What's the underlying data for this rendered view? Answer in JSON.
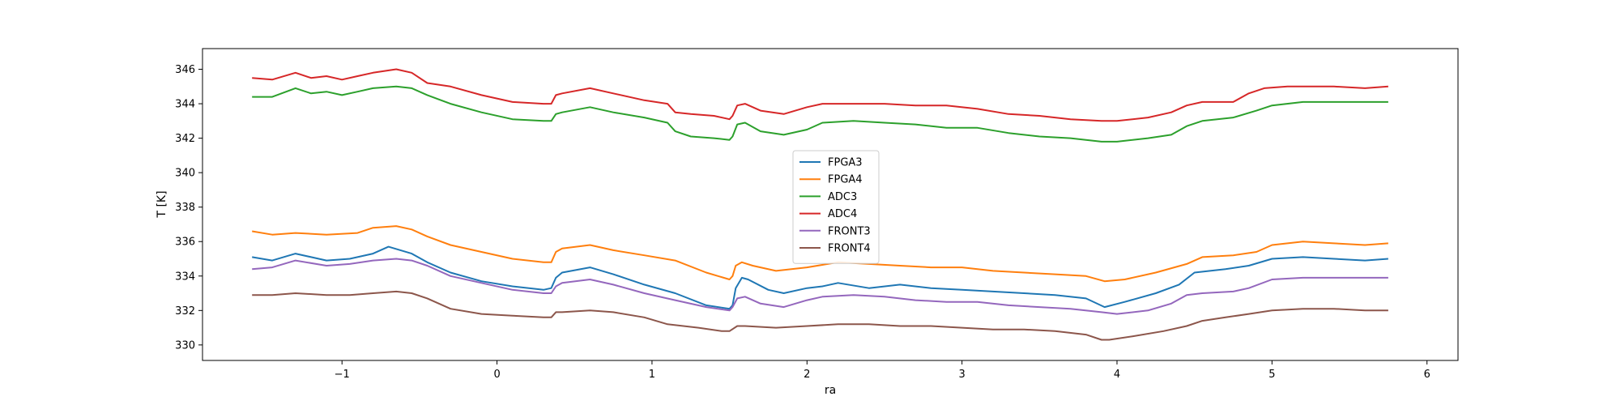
{
  "chart_data": {
    "type": "line",
    "xlabel": "ra",
    "ylabel": "T [K]",
    "xlim": [
      -1.9,
      6.2
    ],
    "ylim": [
      329.1,
      347.2
    ],
    "x_ticks": [
      -1,
      0,
      1,
      2,
      3,
      4,
      5,
      6
    ],
    "y_ticks": [
      330,
      332,
      334,
      336,
      338,
      340,
      342,
      344,
      346
    ],
    "x_tick_labels": [
      "−1",
      "0",
      "1",
      "2",
      "3",
      "4",
      "5",
      "6"
    ],
    "y_tick_labels": [
      "330",
      "332",
      "334",
      "336",
      "338",
      "340",
      "342",
      "344",
      "346"
    ],
    "grid": false,
    "legend_position": "center",
    "series": [
      {
        "name": "FPGA3",
        "color": "#1f77b4",
        "points": [
          [
            -1.58,
            335.1
          ],
          [
            -1.45,
            334.9
          ],
          [
            -1.3,
            335.3
          ],
          [
            -1.1,
            334.9
          ],
          [
            -0.95,
            335.0
          ],
          [
            -0.8,
            335.3
          ],
          [
            -0.7,
            335.7
          ],
          [
            -0.55,
            335.3
          ],
          [
            -0.45,
            334.8
          ],
          [
            -0.3,
            334.2
          ],
          [
            -0.1,
            333.7
          ],
          [
            0.1,
            333.4
          ],
          [
            0.3,
            333.2
          ],
          [
            0.35,
            333.3
          ],
          [
            0.38,
            333.9
          ],
          [
            0.42,
            334.2
          ],
          [
            0.6,
            334.5
          ],
          [
            0.75,
            334.1
          ],
          [
            0.95,
            333.5
          ],
          [
            1.15,
            333.0
          ],
          [
            1.35,
            332.3
          ],
          [
            1.5,
            332.1
          ],
          [
            1.52,
            332.3
          ],
          [
            1.54,
            333.3
          ],
          [
            1.58,
            333.9
          ],
          [
            1.62,
            333.8
          ],
          [
            1.75,
            333.2
          ],
          [
            1.85,
            333.0
          ],
          [
            2.0,
            333.3
          ],
          [
            2.1,
            333.4
          ],
          [
            2.2,
            333.6
          ],
          [
            2.4,
            333.3
          ],
          [
            2.6,
            333.5
          ],
          [
            2.8,
            333.3
          ],
          [
            3.0,
            333.2
          ],
          [
            3.2,
            333.1
          ],
          [
            3.4,
            333.0
          ],
          [
            3.6,
            332.9
          ],
          [
            3.8,
            332.7
          ],
          [
            3.92,
            332.2
          ],
          [
            4.05,
            332.5
          ],
          [
            4.25,
            333.0
          ],
          [
            4.4,
            333.5
          ],
          [
            4.5,
            334.2
          ],
          [
            4.7,
            334.4
          ],
          [
            4.85,
            334.6
          ],
          [
            5.0,
            335.0
          ],
          [
            5.2,
            335.1
          ],
          [
            5.4,
            335.0
          ],
          [
            5.6,
            334.9
          ],
          [
            5.75,
            335.0
          ]
        ]
      },
      {
        "name": "FPGA4",
        "color": "#ff7f0e",
        "points": [
          [
            -1.58,
            336.6
          ],
          [
            -1.45,
            336.4
          ],
          [
            -1.3,
            336.5
          ],
          [
            -1.1,
            336.4
          ],
          [
            -0.9,
            336.5
          ],
          [
            -0.8,
            336.8
          ],
          [
            -0.65,
            336.9
          ],
          [
            -0.55,
            336.7
          ],
          [
            -0.45,
            336.3
          ],
          [
            -0.3,
            335.8
          ],
          [
            -0.1,
            335.4
          ],
          [
            0.1,
            335.0
          ],
          [
            0.3,
            334.8
          ],
          [
            0.35,
            334.8
          ],
          [
            0.38,
            335.4
          ],
          [
            0.42,
            335.6
          ],
          [
            0.6,
            335.8
          ],
          [
            0.75,
            335.5
          ],
          [
            0.95,
            335.2
          ],
          [
            1.15,
            334.9
          ],
          [
            1.35,
            334.2
          ],
          [
            1.5,
            333.8
          ],
          [
            1.52,
            334.0
          ],
          [
            1.54,
            334.6
          ],
          [
            1.58,
            334.8
          ],
          [
            1.65,
            334.6
          ],
          [
            1.8,
            334.3
          ],
          [
            2.0,
            334.5
          ],
          [
            2.2,
            334.8
          ],
          [
            2.4,
            334.7
          ],
          [
            2.6,
            334.6
          ],
          [
            2.8,
            334.5
          ],
          [
            3.0,
            334.5
          ],
          [
            3.2,
            334.3
          ],
          [
            3.4,
            334.2
          ],
          [
            3.6,
            334.1
          ],
          [
            3.8,
            334.0
          ],
          [
            3.92,
            333.7
          ],
          [
            4.05,
            333.8
          ],
          [
            4.25,
            334.2
          ],
          [
            4.45,
            334.7
          ],
          [
            4.55,
            335.1
          ],
          [
            4.75,
            335.2
          ],
          [
            4.9,
            335.4
          ],
          [
            5.0,
            335.8
          ],
          [
            5.2,
            336.0
          ],
          [
            5.4,
            335.9
          ],
          [
            5.6,
            335.8
          ],
          [
            5.75,
            335.9
          ]
        ]
      },
      {
        "name": "ADC3",
        "color": "#2ca02c",
        "points": [
          [
            -1.58,
            344.4
          ],
          [
            -1.45,
            344.4
          ],
          [
            -1.3,
            344.9
          ],
          [
            -1.2,
            344.6
          ],
          [
            -1.1,
            344.7
          ],
          [
            -1.0,
            344.5
          ],
          [
            -0.9,
            344.7
          ],
          [
            -0.8,
            344.9
          ],
          [
            -0.65,
            345.0
          ],
          [
            -0.55,
            344.9
          ],
          [
            -0.45,
            344.5
          ],
          [
            -0.3,
            344.0
          ],
          [
            -0.1,
            343.5
          ],
          [
            0.1,
            343.1
          ],
          [
            0.3,
            343.0
          ],
          [
            0.35,
            343.0
          ],
          [
            0.38,
            343.4
          ],
          [
            0.42,
            343.5
          ],
          [
            0.6,
            343.8
          ],
          [
            0.75,
            343.5
          ],
          [
            0.95,
            343.2
          ],
          [
            1.1,
            342.9
          ],
          [
            1.15,
            342.4
          ],
          [
            1.25,
            342.1
          ],
          [
            1.4,
            342.0
          ],
          [
            1.5,
            341.9
          ],
          [
            1.52,
            342.1
          ],
          [
            1.55,
            342.8
          ],
          [
            1.6,
            342.9
          ],
          [
            1.7,
            342.4
          ],
          [
            1.85,
            342.2
          ],
          [
            2.0,
            342.5
          ],
          [
            2.1,
            342.9
          ],
          [
            2.3,
            343.0
          ],
          [
            2.5,
            342.9
          ],
          [
            2.7,
            342.8
          ],
          [
            2.9,
            342.6
          ],
          [
            3.1,
            342.6
          ],
          [
            3.3,
            342.3
          ],
          [
            3.5,
            342.1
          ],
          [
            3.7,
            342.0
          ],
          [
            3.9,
            341.8
          ],
          [
            4.0,
            341.8
          ],
          [
            4.2,
            342.0
          ],
          [
            4.35,
            342.2
          ],
          [
            4.45,
            342.7
          ],
          [
            4.55,
            343.0
          ],
          [
            4.75,
            343.2
          ],
          [
            4.9,
            343.6
          ],
          [
            5.0,
            343.9
          ],
          [
            5.2,
            344.1
          ],
          [
            5.4,
            344.1
          ],
          [
            5.6,
            344.1
          ],
          [
            5.75,
            344.1
          ]
        ]
      },
      {
        "name": "ADC4",
        "color": "#d62728",
        "points": [
          [
            -1.58,
            345.5
          ],
          [
            -1.45,
            345.4
          ],
          [
            -1.3,
            345.8
          ],
          [
            -1.2,
            345.5
          ],
          [
            -1.1,
            345.6
          ],
          [
            -1.0,
            345.4
          ],
          [
            -0.9,
            345.6
          ],
          [
            -0.8,
            345.8
          ],
          [
            -0.65,
            346.0
          ],
          [
            -0.55,
            345.8
          ],
          [
            -0.45,
            345.2
          ],
          [
            -0.3,
            345.0
          ],
          [
            -0.1,
            344.5
          ],
          [
            0.1,
            344.1
          ],
          [
            0.3,
            344.0
          ],
          [
            0.35,
            344.0
          ],
          [
            0.38,
            344.5
          ],
          [
            0.42,
            344.6
          ],
          [
            0.6,
            344.9
          ],
          [
            0.75,
            344.6
          ],
          [
            0.95,
            344.2
          ],
          [
            1.1,
            344.0
          ],
          [
            1.15,
            343.5
          ],
          [
            1.25,
            343.4
          ],
          [
            1.4,
            343.3
          ],
          [
            1.5,
            343.1
          ],
          [
            1.52,
            343.3
          ],
          [
            1.55,
            343.9
          ],
          [
            1.6,
            344.0
          ],
          [
            1.7,
            343.6
          ],
          [
            1.85,
            343.4
          ],
          [
            2.0,
            343.8
          ],
          [
            2.1,
            344.0
          ],
          [
            2.3,
            344.0
          ],
          [
            2.5,
            344.0
          ],
          [
            2.7,
            343.9
          ],
          [
            2.9,
            343.9
          ],
          [
            3.1,
            343.7
          ],
          [
            3.3,
            343.4
          ],
          [
            3.5,
            343.3
          ],
          [
            3.7,
            343.1
          ],
          [
            3.9,
            343.0
          ],
          [
            4.0,
            343.0
          ],
          [
            4.2,
            343.2
          ],
          [
            4.35,
            343.5
          ],
          [
            4.45,
            343.9
          ],
          [
            4.55,
            344.1
          ],
          [
            4.75,
            344.1
          ],
          [
            4.85,
            344.6
          ],
          [
            4.95,
            344.9
          ],
          [
            5.1,
            345.0
          ],
          [
            5.4,
            345.0
          ],
          [
            5.6,
            344.9
          ],
          [
            5.75,
            345.0
          ]
        ]
      },
      {
        "name": "FRONT3",
        "color": "#9467bd",
        "points": [
          [
            -1.58,
            334.4
          ],
          [
            -1.45,
            334.5
          ],
          [
            -1.3,
            334.9
          ],
          [
            -1.1,
            334.6
          ],
          [
            -0.95,
            334.7
          ],
          [
            -0.8,
            334.9
          ],
          [
            -0.65,
            335.0
          ],
          [
            -0.55,
            334.9
          ],
          [
            -0.45,
            334.6
          ],
          [
            -0.3,
            334.0
          ],
          [
            -0.1,
            333.6
          ],
          [
            0.1,
            333.2
          ],
          [
            0.3,
            333.0
          ],
          [
            0.35,
            333.0
          ],
          [
            0.38,
            333.4
          ],
          [
            0.42,
            333.6
          ],
          [
            0.6,
            333.8
          ],
          [
            0.75,
            333.5
          ],
          [
            0.95,
            333.0
          ],
          [
            1.15,
            332.6
          ],
          [
            1.35,
            332.2
          ],
          [
            1.5,
            332.0
          ],
          [
            1.52,
            332.2
          ],
          [
            1.55,
            332.7
          ],
          [
            1.6,
            332.8
          ],
          [
            1.7,
            332.4
          ],
          [
            1.85,
            332.2
          ],
          [
            2.0,
            332.6
          ],
          [
            2.1,
            332.8
          ],
          [
            2.3,
            332.9
          ],
          [
            2.5,
            332.8
          ],
          [
            2.7,
            332.6
          ],
          [
            2.9,
            332.5
          ],
          [
            3.1,
            332.5
          ],
          [
            3.3,
            332.3
          ],
          [
            3.5,
            332.2
          ],
          [
            3.7,
            332.1
          ],
          [
            3.9,
            331.9
          ],
          [
            4.0,
            331.8
          ],
          [
            4.2,
            332.0
          ],
          [
            4.35,
            332.4
          ],
          [
            4.45,
            332.9
          ],
          [
            4.55,
            333.0
          ],
          [
            4.75,
            333.1
          ],
          [
            4.85,
            333.3
          ],
          [
            5.0,
            333.8
          ],
          [
            5.2,
            333.9
          ],
          [
            5.4,
            333.9
          ],
          [
            5.6,
            333.9
          ],
          [
            5.75,
            333.9
          ]
        ]
      },
      {
        "name": "FRONT4",
        "color": "#8c564b",
        "points": [
          [
            -1.58,
            332.9
          ],
          [
            -1.45,
            332.9
          ],
          [
            -1.3,
            333.0
          ],
          [
            -1.1,
            332.9
          ],
          [
            -0.95,
            332.9
          ],
          [
            -0.8,
            333.0
          ],
          [
            -0.65,
            333.1
          ],
          [
            -0.55,
            333.0
          ],
          [
            -0.45,
            332.7
          ],
          [
            -0.3,
            332.1
          ],
          [
            -0.1,
            331.8
          ],
          [
            0.1,
            331.7
          ],
          [
            0.3,
            331.6
          ],
          [
            0.35,
            331.6
          ],
          [
            0.38,
            331.9
          ],
          [
            0.42,
            331.9
          ],
          [
            0.6,
            332.0
          ],
          [
            0.75,
            331.9
          ],
          [
            0.95,
            331.6
          ],
          [
            1.1,
            331.2
          ],
          [
            1.3,
            331.0
          ],
          [
            1.45,
            330.8
          ],
          [
            1.5,
            330.8
          ],
          [
            1.55,
            331.1
          ],
          [
            1.6,
            331.1
          ],
          [
            1.8,
            331.0
          ],
          [
            2.0,
            331.1
          ],
          [
            2.2,
            331.2
          ],
          [
            2.4,
            331.2
          ],
          [
            2.6,
            331.1
          ],
          [
            2.8,
            331.1
          ],
          [
            3.0,
            331.0
          ],
          [
            3.2,
            330.9
          ],
          [
            3.4,
            330.9
          ],
          [
            3.6,
            330.8
          ],
          [
            3.8,
            330.6
          ],
          [
            3.9,
            330.3
          ],
          [
            3.95,
            330.3
          ],
          [
            4.1,
            330.5
          ],
          [
            4.3,
            330.8
          ],
          [
            4.45,
            331.1
          ],
          [
            4.55,
            331.4
          ],
          [
            4.7,
            331.6
          ],
          [
            4.85,
            331.8
          ],
          [
            5.0,
            332.0
          ],
          [
            5.2,
            332.1
          ],
          [
            5.4,
            332.1
          ],
          [
            5.6,
            332.0
          ],
          [
            5.75,
            332.0
          ]
        ]
      }
    ]
  }
}
